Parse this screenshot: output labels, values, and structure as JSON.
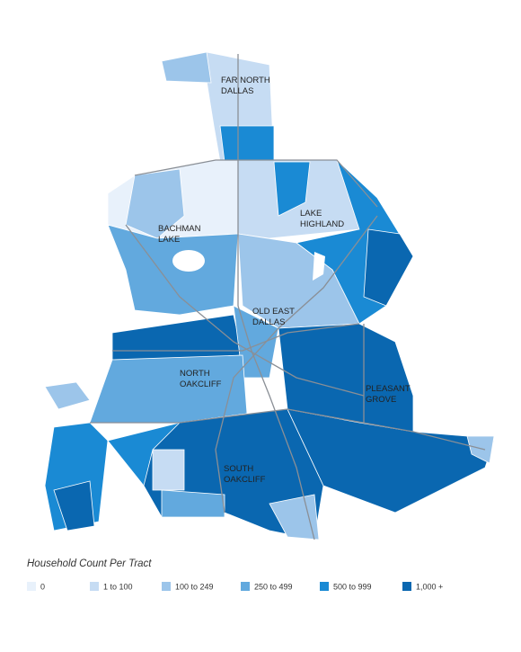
{
  "map": {
    "areas": [
      {
        "lines": [
          "FAR NORTH",
          "DALLAS"
        ]
      },
      {
        "lines": [
          "LAKE",
          "HIGHLAND"
        ]
      },
      {
        "lines": [
          "BACHMAN",
          "LAKE"
        ]
      },
      {
        "lines": [
          "OLD EAST",
          "DALLAS"
        ]
      },
      {
        "lines": [
          "NORTH",
          "OAKCLIFF"
        ]
      },
      {
        "lines": [
          "PLEASANT",
          "GROVE"
        ]
      },
      {
        "lines": [
          "SOUTH",
          "OAKCLIFF"
        ]
      }
    ],
    "legend": {
      "title": "Household Count Per Tract",
      "items": [
        {
          "label": "0",
          "color": "#e8f1fb"
        },
        {
          "label": "1 to 100",
          "color": "#c6dcf3"
        },
        {
          "label": "100 to 249",
          "color": "#9cc5ea"
        },
        {
          "label": "250 to 499",
          "color": "#62a9de"
        },
        {
          "label": "500 to 999",
          "color": "#1a8ad4"
        },
        {
          "label": "1,000 +",
          "color": "#0a67b0"
        }
      ]
    }
  }
}
